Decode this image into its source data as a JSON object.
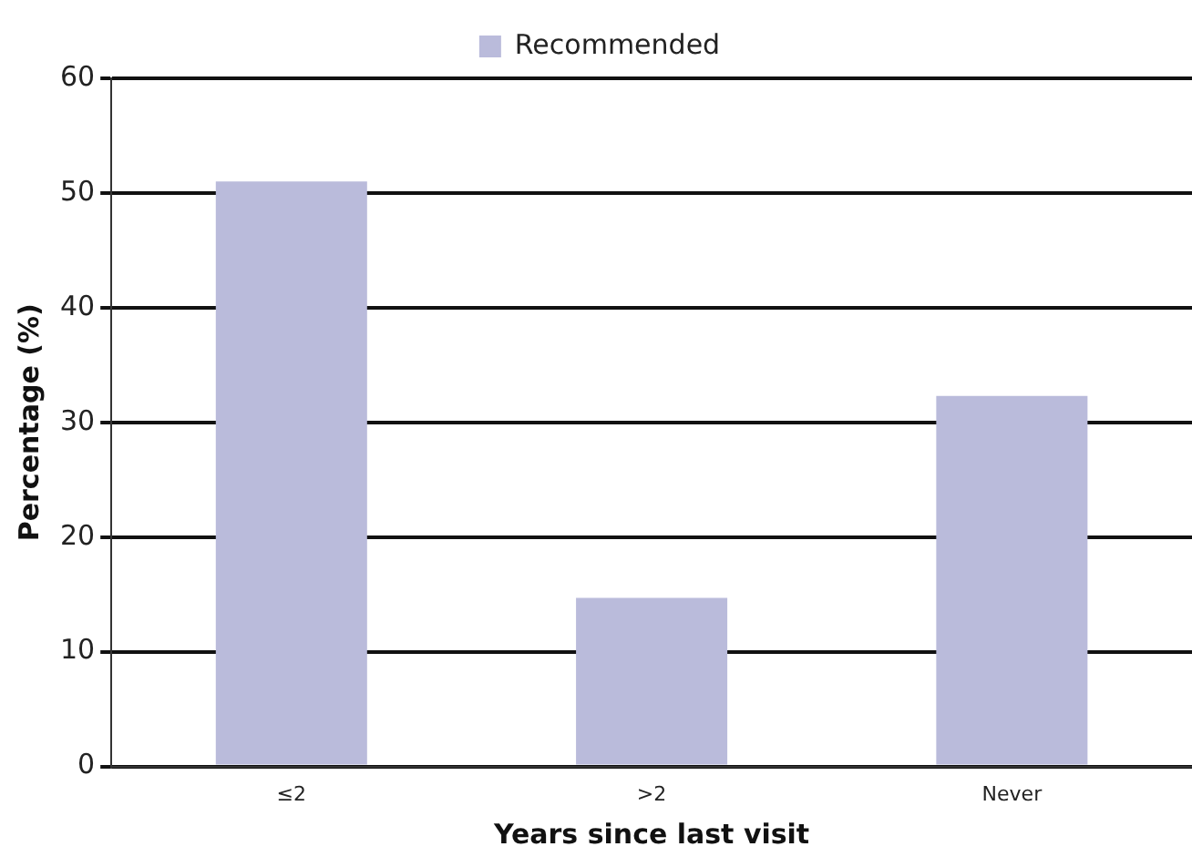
{
  "chart_data": {
    "type": "bar",
    "xlabel": "Years since last visit",
    "ylabel": "Percentage (%)",
    "categories": [
      "≤2",
      ">2",
      "Never"
    ],
    "series": [
      {
        "name": "Recommended",
        "color": "#babbdb",
        "values": [
          51.0,
          14.7,
          32.3
        ]
      }
    ],
    "ylim": [
      0,
      60
    ],
    "yticks": [
      0,
      10,
      20,
      30,
      40,
      50,
      60
    ],
    "grid": "y",
    "legend": "top"
  }
}
